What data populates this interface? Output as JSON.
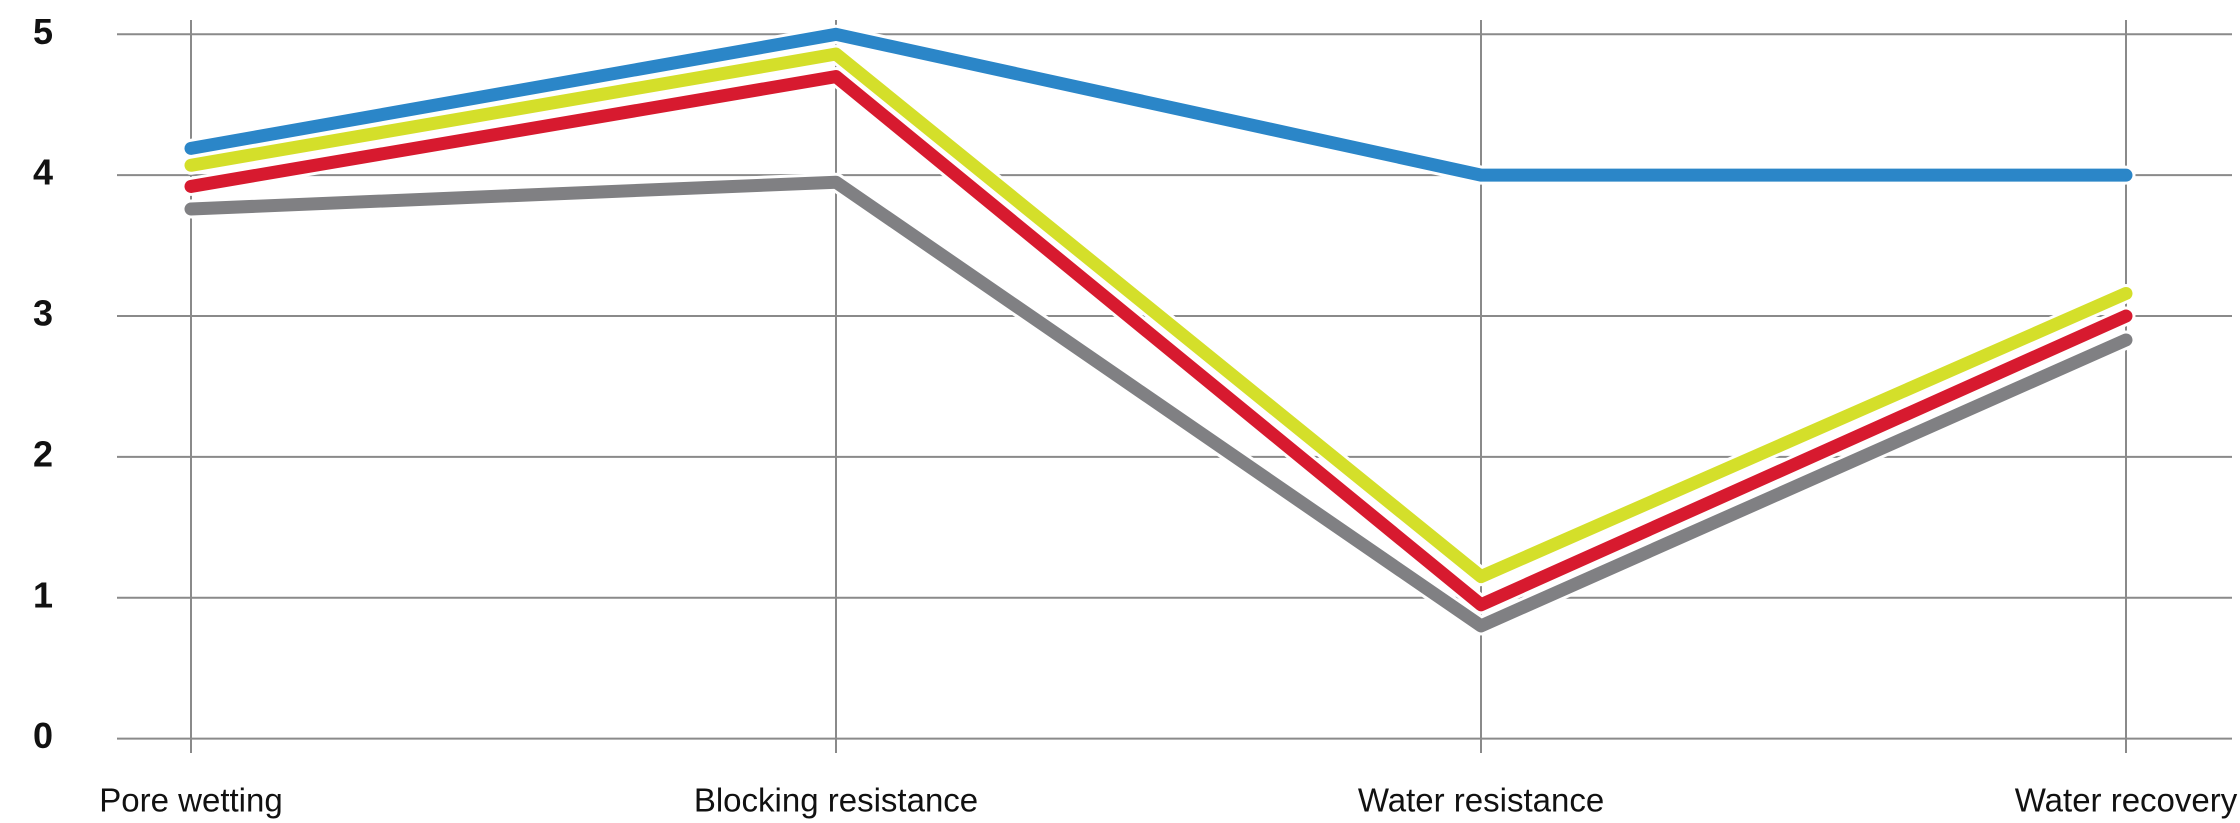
{
  "chart_data": {
    "type": "line",
    "categories": [
      "Pore wetting",
      "Blocking resistance",
      "Water resistance",
      "Water recovery"
    ],
    "series": [
      {
        "color": "#2b86c8",
        "values": [
          4.19,
          5.0,
          4.0,
          4.0
        ]
      },
      {
        "color": "#d4df2a",
        "values": [
          4.07,
          4.86,
          1.15,
          3.16
        ]
      },
      {
        "color": "#d71a2f",
        "values": [
          3.92,
          4.7,
          0.95,
          3.0
        ]
      },
      {
        "color": "#808083",
        "values": [
          3.76,
          3.95,
          0.8,
          2.83
        ]
      }
    ],
    "ylim": [
      0,
      5
    ],
    "yticks": [
      0,
      1,
      2,
      3,
      4,
      5
    ],
    "grid": true
  }
}
